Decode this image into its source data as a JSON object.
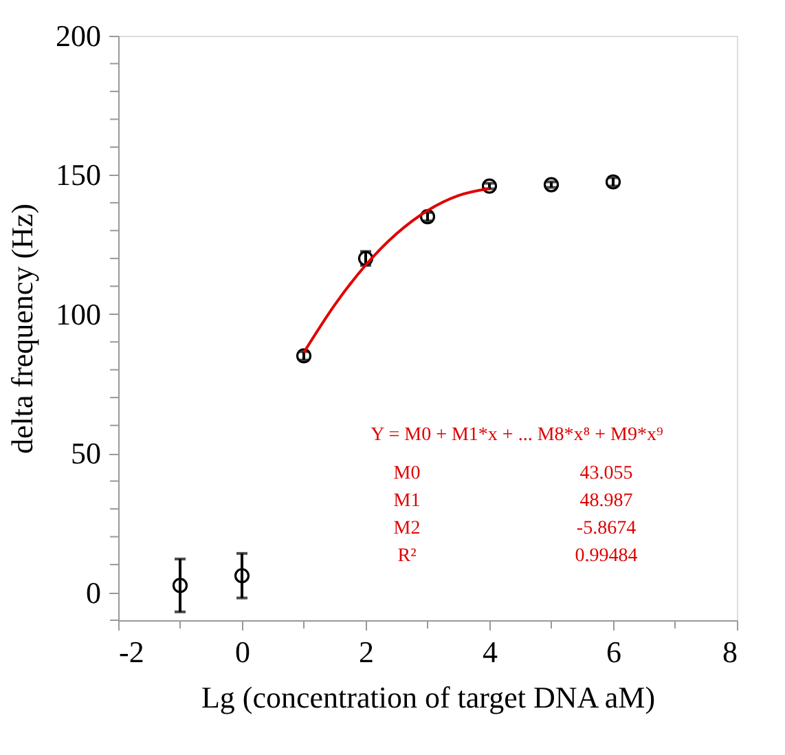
{
  "chart_data": {
    "type": "scatter",
    "xlabel": "Lg (concentration of target DNA aM)",
    "ylabel": "delta frequency (Hz)",
    "xlim": [
      -2,
      8
    ],
    "ylim": [
      -10,
      200
    ],
    "xticks": [
      -2,
      {
        "value": -1,
        "label": null
      },
      0,
      {
        "value": 1,
        "label": null
      },
      2,
      {
        "value": 3,
        "label": null
      },
      4,
      {
        "value": 5,
        "label": null
      },
      6,
      {
        "value": 7,
        "label": null
      },
      8
    ],
    "yticks": [
      {
        "value": -10,
        "label": null
      },
      0,
      {
        "value": 10,
        "label": null
      },
      {
        "value": 20,
        "label": null
      },
      {
        "value": 30,
        "label": null
      },
      {
        "value": 40,
        "label": null
      },
      50,
      {
        "value": 60,
        "label": null
      },
      {
        "value": 70,
        "label": null
      },
      {
        "value": 80,
        "label": null
      },
      {
        "value": 90,
        "label": null
      },
      100,
      {
        "value": 110,
        "label": null
      },
      {
        "value": 120,
        "label": null
      },
      {
        "value": 130,
        "label": null
      },
      {
        "value": 140,
        "label": null
      },
      150,
      {
        "value": 160,
        "label": null
      },
      {
        "value": 170,
        "label": null
      },
      {
        "value": 180,
        "label": null
      },
      {
        "value": 190,
        "label": null
      },
      200
    ],
    "grid": false,
    "legend": false,
    "marker": "circle",
    "series": [
      {
        "type": "scatter",
        "color": "#000000",
        "x": [
          -1,
          0,
          1,
          2,
          3,
          4,
          5,
          6
        ],
        "values": [
          2.5,
          6,
          85,
          120,
          135,
          146,
          146.5,
          147.5
        ],
        "errors": [
          9.5,
          8,
          1.5,
          2.5,
          1.5,
          1,
          1,
          1.5
        ]
      },
      {
        "type": "line",
        "color": "#e00000",
        "x": [
          1,
          1.5,
          2,
          2.5,
          3,
          3.5,
          4
        ],
        "values": [
          86.2,
          103.3,
          117.6,
          128.9,
          137.2,
          142.6,
          145.1
        ],
        "marker": "none"
      }
    ],
    "annotations": [
      "Y = M0 + M1*x + ... M8*x⁸ + M9*x⁹",
      "M0",
      "43.055",
      "M1",
      "48.987",
      "M2",
      "-5.8674",
      "R²",
      "0.99484"
    ]
  }
}
